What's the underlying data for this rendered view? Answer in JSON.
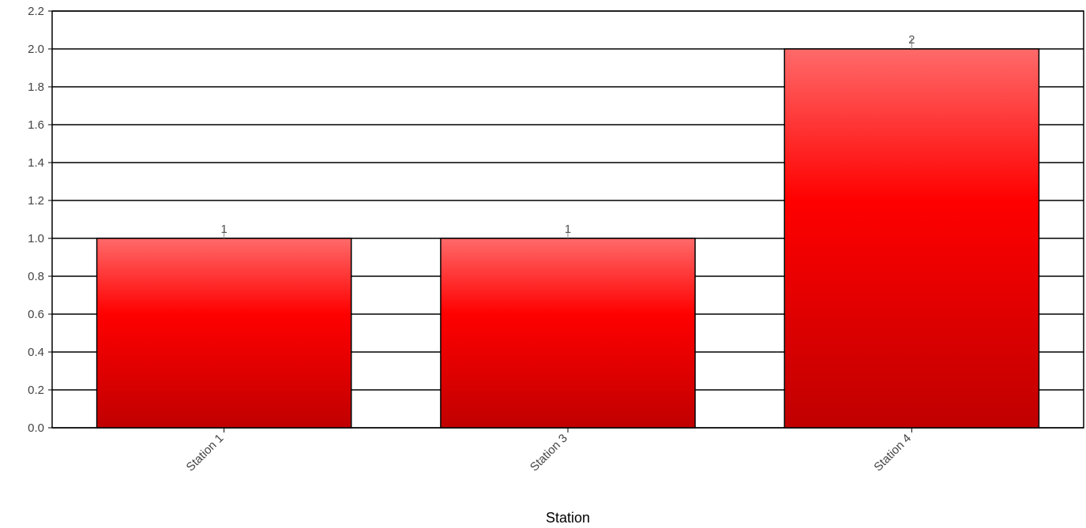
{
  "chart_data": {
    "type": "bar",
    "categories": [
      "Station 1",
      "Station 3",
      "Station 4"
    ],
    "values": [
      1,
      1,
      2
    ],
    "data_labels": [
      "1",
      "1",
      "2"
    ],
    "xlabel": "Station",
    "ylabel": "",
    "ylim": [
      0,
      2.2
    ],
    "y_ticks": [
      0.0,
      0.2,
      0.4,
      0.6,
      0.8,
      1.0,
      1.2,
      1.4,
      1.6,
      1.8,
      2.0,
      2.2
    ],
    "y_tick_labels": [
      "0.0",
      "0.2",
      "0.4",
      "0.6",
      "0.8",
      "1.0",
      "1.2",
      "1.4",
      "1.6",
      "1.8",
      "2.0",
      "2.2"
    ],
    "grid": true,
    "legend": "none",
    "bar_color": "#ff0000",
    "bar_color_dark": "#c00000",
    "bar_color_light": "#ff6a6a"
  }
}
